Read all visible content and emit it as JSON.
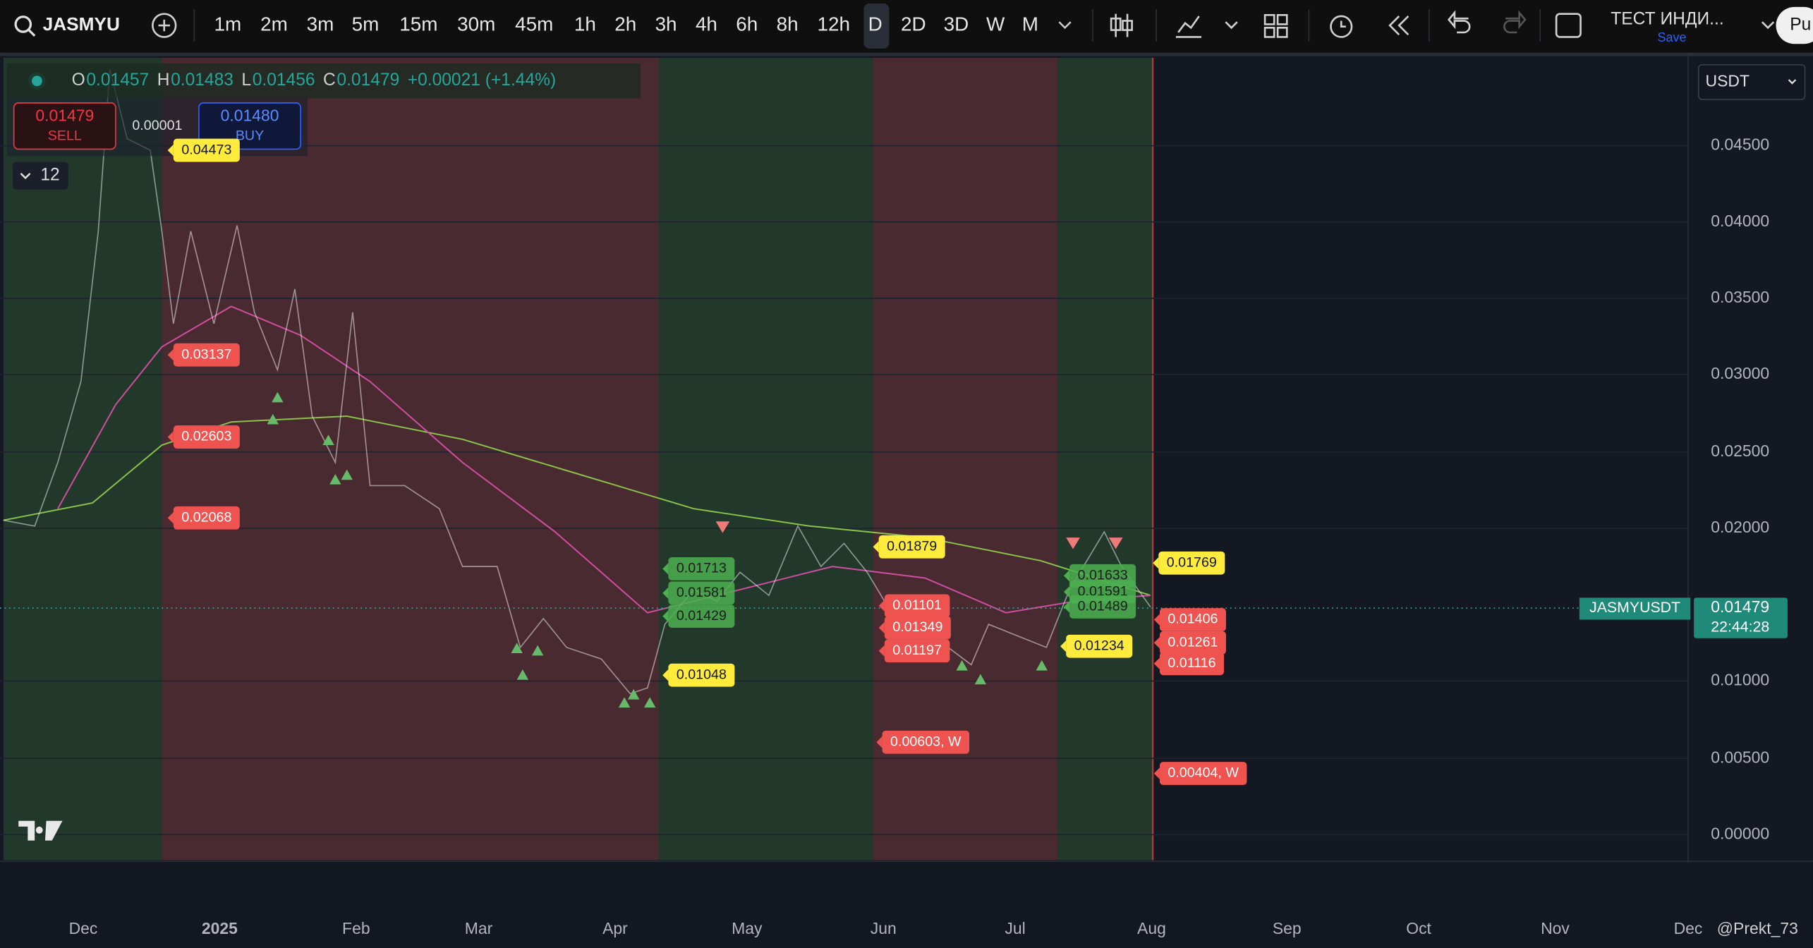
{
  "toolbar": {
    "symbol": "JASMYU",
    "intervals": [
      "1m",
      "2m",
      "3m",
      "5m",
      "15m",
      "30m",
      "45m",
      "1h",
      "2h",
      "3h",
      "4h",
      "6h",
      "8h",
      "12h",
      "D",
      "2D",
      "3D",
      "W",
      "M"
    ],
    "indicator": "ТЕСТ ИНДИ...",
    "save": "Save",
    "partial": "Pu"
  },
  "legend": {
    "ohlc": [
      {
        "label": "O",
        "value": "0.01457"
      },
      {
        "label": "H",
        "value": "0.01483"
      },
      {
        "label": "L",
        "value": "0.01456"
      },
      {
        "label": "C",
        "value": "0.01479"
      }
    ],
    "change": "+0.00021 (+1.44%)"
  },
  "trade": {
    "sell_price": "0.01479",
    "sell": "SELL",
    "spread": "0.00001",
    "buy_price": "0.01480",
    "buy": "BUY"
  },
  "indicator_count": "12",
  "currency": "USDT",
  "price_axis": [
    "0.04500",
    "0.04000",
    "0.03500",
    "0.03000",
    "0.02500",
    "0.02000",
    "0.01000",
    "0.00500",
    "0.00000"
  ],
  "time_axis": [
    "Dec",
    "2025",
    "Feb",
    "Mar",
    "Apr",
    "May",
    "Jun",
    "Jul",
    "Aug",
    "Sep",
    "Oct",
    "Nov",
    "Dec"
  ],
  "symbol_label": "JASMYUSDT",
  "last_price": "0.01479",
  "countdown": "22:44:28",
  "watermark": "@Prekt_73",
  "annotations": [
    {
      "text": "0.04473",
      "kind": "yellow"
    },
    {
      "text": "0.03137",
      "kind": "red"
    },
    {
      "text": "0.02603",
      "kind": "red"
    },
    {
      "text": "0.02068",
      "kind": "red"
    },
    {
      "text": "0.01713",
      "kind": "green"
    },
    {
      "text": "0.01581",
      "kind": "green"
    },
    {
      "text": "0.01429",
      "kind": "green"
    },
    {
      "text": "0.01048",
      "kind": "yellow"
    },
    {
      "text": "0.01879",
      "kind": "yellow"
    },
    {
      "text": "0.01101",
      "kind": "red"
    },
    {
      "text": "0.01349",
      "kind": "red"
    },
    {
      "text": "0.01197",
      "kind": "red"
    },
    {
      "text": "0.00603, W",
      "kind": "red"
    },
    {
      "text": "0.01633",
      "kind": "green"
    },
    {
      "text": "0.01591",
      "kind": "green"
    },
    {
      "text": "0.01489",
      "kind": "green"
    },
    {
      "text": "0.01234",
      "kind": "yellow"
    },
    {
      "text": "0.01769",
      "kind": "yellow"
    },
    {
      "text": "0.01406",
      "kind": "red"
    },
    {
      "text": "0.01261",
      "kind": "red"
    },
    {
      "text": "0.01116",
      "kind": "red"
    },
    {
      "text": "0.00404, W",
      "kind": "red"
    }
  ]
}
